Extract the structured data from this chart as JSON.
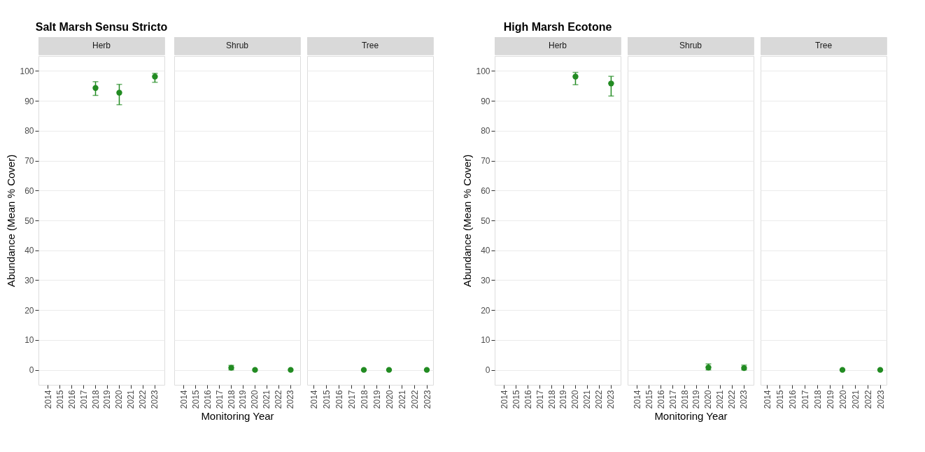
{
  "chart_data": [
    {
      "type": "scatter",
      "title": "Salt Marsh Sensu Stricto",
      "subtitle": "Herb",
      "ylabel": "Abundance (Mean % Cover)",
      "categories": [
        "2014",
        "2015",
        "2016",
        "2017",
        "2018",
        "2019",
        "2020",
        "2021",
        "2022",
        "2023"
      ],
      "series": [
        {
          "color": "#228b22",
          "values": [
            null,
            null,
            null,
            null,
            94.3,
            null,
            92.7,
            null,
            null,
            98.1
          ],
          "errors": [
            null,
            null,
            null,
            null,
            [
              91.8,
              96.4
            ],
            null,
            [
              88.7,
              95.5
            ],
            null,
            null,
            [
              96.2,
              99.2
            ]
          ]
        }
      ],
      "ylim": [
        -5,
        105
      ],
      "yticks": [
        0,
        10,
        20,
        30,
        40,
        50,
        60,
        70,
        80,
        90,
        100
      ],
      "grid": "y",
      "marker": "circle"
    },
    {
      "type": "scatter",
      "subtitle": "Shrub",
      "xlabel": "Monitoring Year",
      "categories": [
        "2014",
        "2015",
        "2016",
        "2017",
        "2018",
        "2019",
        "2020",
        "2021",
        "2022",
        "2023"
      ],
      "series": [
        {
          "color": "#228b22",
          "values": [
            null,
            null,
            null,
            null,
            0.7,
            null,
            0,
            null,
            null,
            0
          ],
          "errors": [
            null,
            null,
            null,
            null,
            [
              0,
              1.5
            ],
            null,
            null,
            null,
            null,
            null
          ]
        }
      ],
      "ylim": [
        -5,
        105
      ],
      "yticks": [
        0,
        10,
        20,
        30,
        40,
        50,
        60,
        70,
        80,
        90,
        100
      ],
      "grid": "y",
      "marker": "circle",
      "tick_labels": "x"
    },
    {
      "type": "scatter",
      "subtitle": "Tree",
      "categories": [
        "2014",
        "2015",
        "2016",
        "2017",
        "2018",
        "2019",
        "2020",
        "2021",
        "2022",
        "2023"
      ],
      "series": [
        {
          "color": "#228b22",
          "values": [
            null,
            null,
            null,
            null,
            0,
            null,
            0,
            null,
            null,
            0
          ]
        }
      ],
      "ylim": [
        -5,
        105
      ],
      "yticks": [
        0,
        10,
        20,
        30,
        40,
        50,
        60,
        70,
        80,
        90,
        100
      ],
      "grid": "y",
      "marker": "circle",
      "tick_labels": "x"
    },
    {
      "type": "scatter",
      "title": "High Marsh Ecotone",
      "subtitle": "Herb",
      "ylabel": "Abundance (Mean % Cover)",
      "categories": [
        "2014",
        "2015",
        "2016",
        "2017",
        "2018",
        "2019",
        "2020",
        "2021",
        "2022",
        "2023"
      ],
      "series": [
        {
          "color": "#228b22",
          "values": [
            null,
            null,
            null,
            null,
            null,
            null,
            98.1,
            null,
            null,
            95.8
          ],
          "errors": [
            null,
            null,
            null,
            null,
            null,
            null,
            [
              95.4,
              99.5
            ],
            null,
            null,
            [
              91.6,
              98.2
            ]
          ]
        }
      ],
      "ylim": [
        -5,
        105
      ],
      "yticks": [
        0,
        10,
        20,
        30,
        40,
        50,
        60,
        70,
        80,
        90,
        100
      ],
      "grid": "y",
      "marker": "circle"
    },
    {
      "type": "scatter",
      "subtitle": "Shrub",
      "xlabel": "Monitoring Year",
      "categories": [
        "2014",
        "2015",
        "2016",
        "2017",
        "2018",
        "2019",
        "2020",
        "2021",
        "2022",
        "2023"
      ],
      "series": [
        {
          "color": "#228b22",
          "values": [
            null,
            null,
            null,
            null,
            null,
            null,
            0.8,
            null,
            null,
            0.6
          ],
          "errors": [
            null,
            null,
            null,
            null,
            null,
            null,
            [
              0,
              2
            ],
            null,
            null,
            [
              0,
              1.6
            ]
          ]
        }
      ],
      "ylim": [
        -5,
        105
      ],
      "yticks": [
        0,
        10,
        20,
        30,
        40,
        50,
        60,
        70,
        80,
        90,
        100
      ],
      "grid": "y",
      "marker": "circle",
      "tick_labels": "x"
    },
    {
      "type": "scatter",
      "subtitle": "Tree",
      "categories": [
        "2014",
        "2015",
        "2016",
        "2017",
        "2018",
        "2019",
        "2020",
        "2021",
        "2022",
        "2023"
      ],
      "series": [
        {
          "color": "#228b22",
          "values": [
            null,
            null,
            null,
            null,
            null,
            null,
            0,
            null,
            null,
            0
          ]
        }
      ],
      "ylim": [
        -5,
        105
      ],
      "yticks": [
        0,
        10,
        20,
        30,
        40,
        50,
        60,
        70,
        80,
        90,
        100
      ],
      "grid": "y",
      "marker": "circle",
      "tick_labels": "x"
    }
  ]
}
